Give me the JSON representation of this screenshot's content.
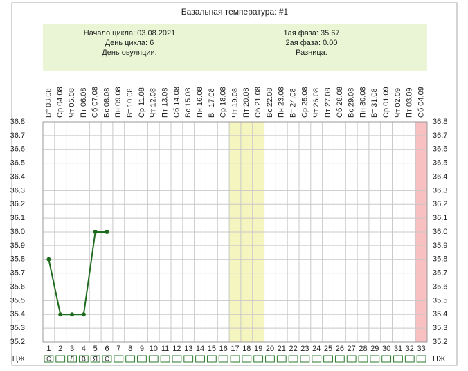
{
  "chart_data": {
    "type": "line",
    "title": "Базальная температура: #1",
    "info": {
      "left": [
        "Начало цикла: 03.08.2021",
        "День цикла: 6",
        "День овуляции:"
      ],
      "right": [
        "1ая фаза: 35.67",
        "2ая фаза: 0.00",
        "Разница:"
      ]
    },
    "categories": [
      "Вт 03.08",
      "Ср 04.08",
      "Чт 05.08",
      "Пт 06.08",
      "Сб 07.08",
      "Вс 08.08",
      "Пн 09.08",
      "Вт 10.08",
      "Ср 11.08",
      "Чт 12.08",
      "Пт 13.08",
      "Сб 14.08",
      "Вс 15.08",
      "Пн 16.08",
      "Вт 17.08",
      "Ср 18.08",
      "Чт 19.08",
      "Пт 20.08",
      "Сб 21.08",
      "Вс 22.08",
      "Пн 23.08",
      "Вт 24.08",
      "Ср 25.08",
      "Чт 26.08",
      "Пт 27.08",
      "Сб 28.08",
      "Вс 29.08",
      "Пн 30.08",
      "Вт 31.08",
      "Ср 01.09",
      "Чт 02.09",
      "Пт 03.09",
      "Сб 04.09"
    ],
    "x": [
      1,
      2,
      3,
      4,
      5,
      6,
      7,
      8,
      9,
      10,
      11,
      12,
      13,
      14,
      15,
      16,
      17,
      18,
      19,
      20,
      21,
      22,
      23,
      24,
      25,
      26,
      27,
      28,
      29,
      30,
      31,
      32,
      33
    ],
    "series": [
      {
        "color": "#1e6b1e",
        "values": [
          35.8,
          35.4,
          35.4,
          35.4,
          36.0,
          36.0,
          null,
          null,
          null,
          null,
          null,
          null,
          null,
          null,
          null,
          null,
          null,
          null,
          null,
          null,
          null,
          null,
          null,
          null,
          null,
          null,
          null,
          null,
          null,
          null,
          null,
          null,
          null
        ]
      }
    ],
    "ylim": [
      35.2,
      36.8
    ],
    "yticks": [
      35.2,
      35.3,
      35.4,
      35.5,
      35.6,
      35.7,
      35.8,
      35.9,
      {
        "value": 36.0,
        "label": "36.0"
      },
      36.1,
      36.2,
      36.3,
      36.4,
      36.5,
      36.6,
      36.7,
      36.8
    ],
    "grid": true,
    "highlights": [
      {
        "from": 17,
        "to": 19,
        "color": "#f5f5c0"
      },
      {
        "from": 33,
        "to": 33,
        "color": "#f8c0c0"
      }
    ],
    "row_label": "ЦЖ",
    "row_marks": [
      "С",
      null,
      "Л",
      "В",
      "Я",
      "С",
      null,
      null,
      null,
      null,
      null,
      null,
      null,
      null,
      null,
      null,
      null,
      null,
      null,
      null,
      null,
      null,
      null,
      null,
      null,
      null,
      null,
      null,
      null,
      null,
      null,
      null,
      null
    ]
  }
}
